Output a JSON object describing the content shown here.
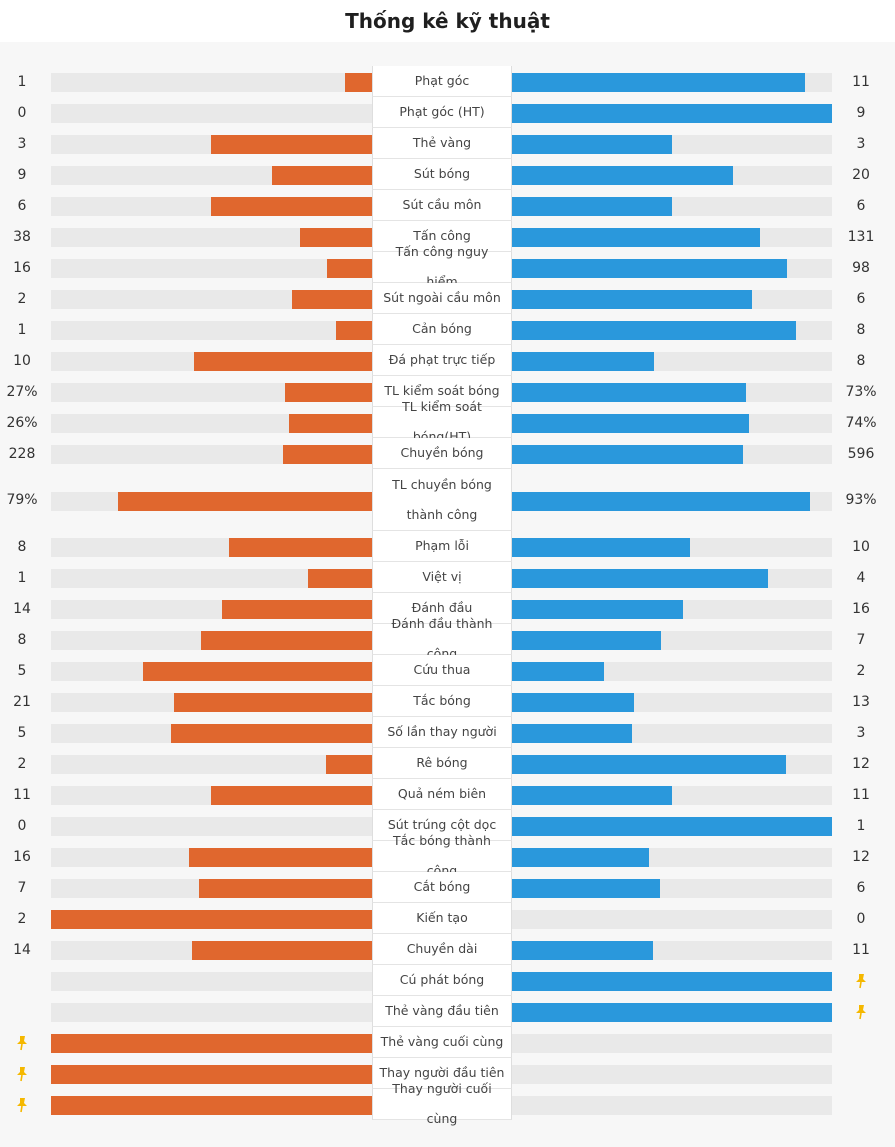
{
  "title": "Thống kê kỹ thuật",
  "colors": {
    "home": "#e0672e",
    "away": "#2a98dc",
    "track": "#e9e9e9",
    "pin": "#f5b800"
  },
  "stats": [
    {
      "label": "Phạt góc",
      "home": "1",
      "away": "11",
      "home_share": 0.083,
      "away_share": 0.917
    },
    {
      "label": "Phạt góc (HT)",
      "home": "0",
      "away": "9",
      "home_share": 0,
      "away_share": 1
    },
    {
      "label": "Thẻ vàng",
      "home": "3",
      "away": "3",
      "home_share": 0.5,
      "away_share": 0.5
    },
    {
      "label": "Sút bóng",
      "home": "9",
      "away": "20",
      "home_share": 0.31,
      "away_share": 0.69
    },
    {
      "label": "Sút cầu môn",
      "home": "6",
      "away": "6",
      "home_share": 0.5,
      "away_share": 0.5
    },
    {
      "label": "Tấn công",
      "home": "38",
      "away": "131",
      "home_share": 0.225,
      "away_share": 0.775
    },
    {
      "label": "Tấn công nguy hiểm",
      "home": "16",
      "away": "98",
      "home_share": 0.14,
      "away_share": 0.86
    },
    {
      "label": "Sút ngoài cầu môn",
      "home": "2",
      "away": "6",
      "home_share": 0.25,
      "away_share": 0.75
    },
    {
      "label": "Cản bóng",
      "home": "1",
      "away": "8",
      "home_share": 0.111,
      "away_share": 0.889
    },
    {
      "label": "Đá phạt trực tiếp",
      "home": "10",
      "away": "8",
      "home_share": 0.556,
      "away_share": 0.444
    },
    {
      "label": "TL kiểm soát bóng",
      "home": "27%",
      "away": "73%",
      "home_share": 0.27,
      "away_share": 0.73
    },
    {
      "label": "TL kiểm soát bóng(HT)",
      "home": "26%",
      "away": "74%",
      "home_share": 0.26,
      "away_share": 0.74
    },
    {
      "label": "Chuyền bóng",
      "home": "228",
      "away": "596",
      "home_share": 0.277,
      "away_share": 0.723
    },
    {
      "label": "TL chuyền bóng thành công",
      "home": "79%",
      "away": "93%",
      "home_share": 0.79,
      "away_share": 0.93,
      "tall": true
    },
    {
      "label": "Phạm lỗi",
      "home": "8",
      "away": "10",
      "home_share": 0.444,
      "away_share": 0.556
    },
    {
      "label": "Việt vị",
      "home": "1",
      "away": "4",
      "home_share": 0.2,
      "away_share": 0.8
    },
    {
      "label": "Đánh đầu",
      "home": "14",
      "away": "16",
      "home_share": 0.467,
      "away_share": 0.533
    },
    {
      "label": "Đánh đầu thành công",
      "home": "8",
      "away": "7",
      "home_share": 0.533,
      "away_share": 0.467
    },
    {
      "label": "Cứu thua",
      "home": "5",
      "away": "2",
      "home_share": 0.714,
      "away_share": 0.286
    },
    {
      "label": "Tắc bóng",
      "home": "21",
      "away": "13",
      "home_share": 0.618,
      "away_share": 0.382
    },
    {
      "label": "Số lần thay người",
      "home": "5",
      "away": "3",
      "home_share": 0.625,
      "away_share": 0.375
    },
    {
      "label": "Rê bóng",
      "home": "2",
      "away": "12",
      "home_share": 0.143,
      "away_share": 0.857
    },
    {
      "label": "Quả ném biên",
      "home": "11",
      "away": "11",
      "home_share": 0.5,
      "away_share": 0.5
    },
    {
      "label": "Sút trúng cột dọc",
      "home": "0",
      "away": "1",
      "home_share": 0,
      "away_share": 1
    },
    {
      "label": "Tắc bóng thành công",
      "home": "16",
      "away": "12",
      "home_share": 0.571,
      "away_share": 0.429
    },
    {
      "label": "Cắt bóng",
      "home": "7",
      "away": "6",
      "home_share": 0.538,
      "away_share": 0.462
    },
    {
      "label": "Kiến tạo",
      "home": "2",
      "away": "0",
      "home_share": 1,
      "away_share": 0
    },
    {
      "label": "Chuyền dài",
      "home": "14",
      "away": "11",
      "home_share": 0.56,
      "away_share": 0.44
    },
    {
      "label": "Cú phát bóng",
      "home": "",
      "away": "",
      "home_share": 0,
      "away_share": 1,
      "marker": "away"
    },
    {
      "label": "Thẻ vàng đầu tiên",
      "home": "",
      "away": "",
      "home_share": 0,
      "away_share": 1,
      "marker": "away"
    },
    {
      "label": "Thẻ vàng cuối cùng",
      "home": "",
      "away": "",
      "home_share": 1,
      "away_share": 0,
      "marker": "home"
    },
    {
      "label": "Thay người đầu tiên",
      "home": "",
      "away": "",
      "home_share": 1,
      "away_share": 0,
      "marker": "home"
    },
    {
      "label": "Thay người cuối cùng",
      "home": "",
      "away": "",
      "home_share": 1,
      "away_share": 0,
      "marker": "home"
    }
  ]
}
